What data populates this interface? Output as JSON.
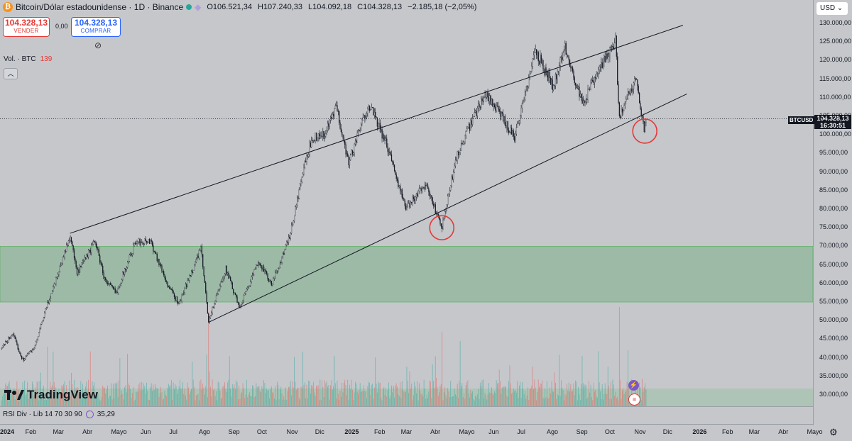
{
  "header": {
    "symbol_title": "Bitcoin/Dólar estadounidense · 1D · Binance",
    "open": "O106.521,34",
    "high": "H107.240,33",
    "low": "L104.092,18",
    "close": "C104.328,13",
    "change": "−2.185,18 (−2,05%)"
  },
  "trade": {
    "sell_price": "104.328,13",
    "sell_label": "VENDER",
    "spread": "0,00",
    "buy_price": "104.328,13",
    "buy_label": "COMPRAR"
  },
  "volume": {
    "label": "Vol. · BTC",
    "value": "139"
  },
  "currency": "USD",
  "price_tag": {
    "symbol": "BTCUSD",
    "price": "104.328,13",
    "countdown": "16:30:51"
  },
  "rsi": {
    "label": "RSI Div · Lib 14 70 30 90",
    "value": "35,29"
  },
  "brand": "TradingView",
  "colors": {
    "up": "#131722",
    "down": "#131722",
    "zone": "#8fb59b",
    "circle": "#e53935",
    "vol_up": "#26a69a",
    "vol_down": "#ef5350"
  },
  "chart_data": {
    "type": "candlestick",
    "y_ticks": [
      "130.000,00",
      "125.000,00",
      "120.000,00",
      "115.000,00",
      "110.000,00",
      "105.000,00",
      "100.000,00",
      "95.000,00",
      "90.000,00",
      "85.000,00",
      "80.000,00",
      "75.000,00",
      "70.000,00",
      "65.000,00",
      "60.000,00",
      "55.000,00",
      "50.000,00",
      "45.000,00",
      "40.000,00",
      "35.000,00",
      "30.000,00"
    ],
    "ylim": [
      27000,
      132000
    ],
    "x_ticks": [
      "2024",
      "Feb",
      "Mar",
      "Abr",
      "Mayo",
      "Jun",
      "Jul",
      "Ago",
      "Sep",
      "Oct",
      "Nov",
      "Dic",
      "2025",
      "Feb",
      "Mar",
      "Abr",
      "Mayo",
      "Jun",
      "Jul",
      "Ago",
      "Sep",
      "Oct",
      "Nov",
      "Dic",
      "2026",
      "Feb",
      "Mar",
      "Abr",
      "Mayo"
    ],
    "x_start": "2024-01-01",
    "last_price": 104328.13,
    "price_path": [
      [
        "2024-01-01",
        42500
      ],
      [
        "2024-01-12",
        46500
      ],
      [
        "2024-01-23",
        39500
      ],
      [
        "2024-02-05",
        43000
      ],
      [
        "2024-02-15",
        52000
      ],
      [
        "2024-02-28",
        62000
      ],
      [
        "2024-03-13",
        73000
      ],
      [
        "2024-03-20",
        62500
      ],
      [
        "2024-04-08",
        71500
      ],
      [
        "2024-04-18",
        61000
      ],
      [
        "2024-04-30",
        57500
      ],
      [
        "2024-05-20",
        71000
      ],
      [
        "2024-06-05",
        71500
      ],
      [
        "2024-06-24",
        59000
      ],
      [
        "2024-07-05",
        54500
      ],
      [
        "2024-07-28",
        69500
      ],
      [
        "2024-08-05",
        50000
      ],
      [
        "2024-08-23",
        64000
      ],
      [
        "2024-09-06",
        53500
      ],
      [
        "2024-09-27",
        66000
      ],
      [
        "2024-10-10",
        59500
      ],
      [
        "2024-10-29",
        72500
      ],
      [
        "2024-11-13",
        91000
      ],
      [
        "2024-11-22",
        99500
      ],
      [
        "2024-12-05",
        100000
      ],
      [
        "2024-12-17",
        107500
      ],
      [
        "2024-12-30",
        92500
      ],
      [
        "2025-01-20",
        108500
      ],
      [
        "2025-02-10",
        96000
      ],
      [
        "2025-02-28",
        80000
      ],
      [
        "2025-03-20",
        87000
      ],
      [
        "2025-04-07",
        75000
      ],
      [
        "2025-04-22",
        94000
      ],
      [
        "2025-05-22",
        111500
      ],
      [
        "2025-06-22",
        99500
      ],
      [
        "2025-07-14",
        122500
      ],
      [
        "2025-08-02",
        113000
      ],
      [
        "2025-08-14",
        124000
      ],
      [
        "2025-09-01",
        108000
      ],
      [
        "2025-09-18",
        117000
      ],
      [
        "2025-10-06",
        125500
      ],
      [
        "2025-10-10",
        104500
      ],
      [
        "2025-10-27",
        115500
      ],
      [
        "2025-11-05",
        102000
      ],
      [
        "2025-11-07",
        104328
      ]
    ],
    "zone": {
      "from": 55000,
      "to": 70000
    },
    "upper_trendline": [
      [
        "2024-03-13",
        73500
      ],
      [
        "2025-12-16",
        129500
      ]
    ],
    "lower_trendline": [
      [
        "2024-08-05",
        49500
      ],
      [
        "2025-12-20",
        111000
      ]
    ],
    "circles": [
      [
        "2025-04-07",
        75000
      ],
      [
        "2025-11-06",
        101000
      ]
    ],
    "volume_spikes": [
      [
        "2024-08-05",
        0.95
      ],
      [
        "2025-10-10",
        1.0
      ],
      [
        "2025-04-07",
        0.75
      ],
      [
        "2024-11-12",
        0.55
      ]
    ]
  }
}
